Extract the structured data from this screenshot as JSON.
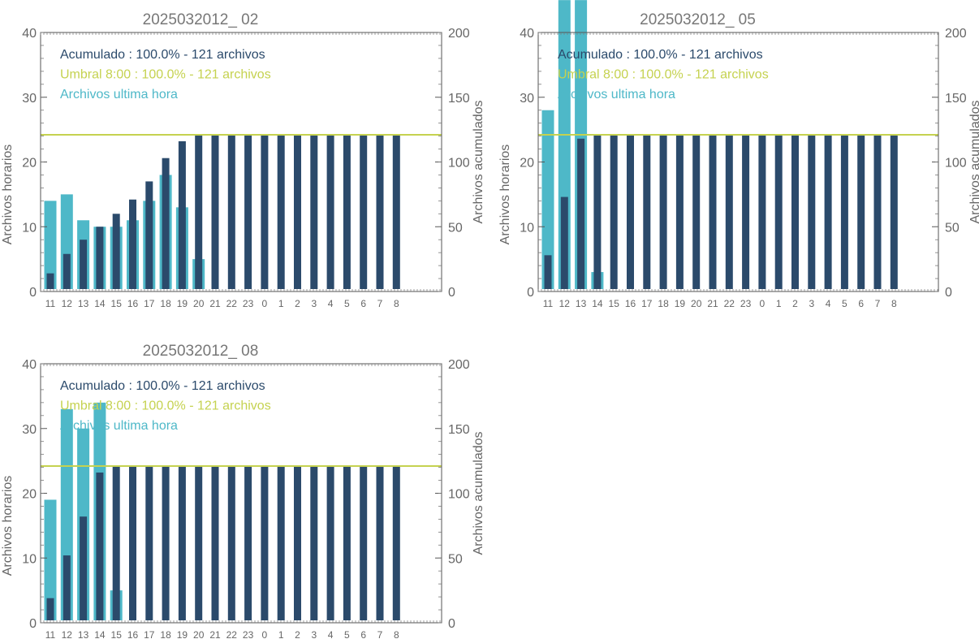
{
  "colors": {
    "hourly": "#4eb8c8",
    "cumulative": "#2b4a6b",
    "threshold": "#c5d250",
    "axis": "#666666",
    "title": "#777777",
    "legend_cumulative": "#2b4a6b",
    "legend_threshold": "#c5d250",
    "legend_hourly": "#4eb8c8"
  },
  "chart_data": [
    {
      "type": "bar",
      "title": "2025032012_ 02",
      "ylabel": "Archivos horarios",
      "y2label": "Archivos acumulados",
      "ylim": [
        0,
        40
      ],
      "y2lim": [
        0,
        200
      ],
      "yticks": [
        "0",
        "10",
        "20",
        "30",
        "40"
      ],
      "y2ticks": [
        "0",
        "50",
        "100",
        "150",
        "200"
      ],
      "categories": [
        "11",
        "12",
        "13",
        "14",
        "15",
        "16",
        "17",
        "18",
        "19",
        "20",
        "21",
        "22",
        "23",
        "0",
        "1",
        "2",
        "3",
        "4",
        "5",
        "6",
        "7",
        "8"
      ],
      "threshold": 121,
      "legend": [
        "Acumulado : 100.0% - 121 archivos",
        "Umbral 8:00 : 100.0% - 121 archivos",
        "Archivos ultima hora"
      ],
      "series": [
        {
          "name": "Archivos ultima hora",
          "axis": "left",
          "values": [
            14,
            15,
            11,
            10,
            10,
            11,
            14,
            18,
            13,
            5,
            null,
            null,
            null,
            null,
            null,
            null,
            null,
            null,
            null,
            null,
            null,
            null
          ]
        },
        {
          "name": "Acumulado",
          "axis": "right",
          "values": [
            14,
            29,
            40,
            50,
            60,
            71,
            85,
            103,
            116,
            121,
            121,
            121,
            121,
            121,
            121,
            121,
            121,
            121,
            121,
            121,
            121,
            121
          ]
        }
      ]
    },
    {
      "type": "bar",
      "title": "2025032012_ 05",
      "ylabel": "Archivos horarios",
      "y2label": "Archivos acumulados",
      "ylim": [
        0,
        40
      ],
      "y2lim": [
        0,
        200
      ],
      "yticks": [
        "0",
        "10",
        "20",
        "30",
        "40"
      ],
      "y2ticks": [
        "0",
        "50",
        "100",
        "150",
        "200"
      ],
      "categories": [
        "11",
        "12",
        "13",
        "14",
        "15",
        "16",
        "17",
        "18",
        "19",
        "20",
        "21",
        "22",
        "23",
        "0",
        "1",
        "2",
        "3",
        "4",
        "5",
        "6",
        "7",
        "8"
      ],
      "threshold": 121,
      "legend": [
        "Acumulado : 100.0% - 121 archivos",
        "Umbral 8:00 : 100.0% - 121 archivos",
        "Archivos ultima hora"
      ],
      "series": [
        {
          "name": "Archivos ultima hora",
          "axis": "left",
          "values": [
            28,
            45,
            45,
            3,
            null,
            null,
            null,
            null,
            null,
            null,
            null,
            null,
            null,
            null,
            null,
            null,
            null,
            null,
            null,
            null,
            null,
            null
          ]
        },
        {
          "name": "Acumulado",
          "axis": "right",
          "values": [
            28,
            73,
            118,
            121,
            121,
            121,
            121,
            121,
            121,
            121,
            121,
            121,
            121,
            121,
            121,
            121,
            121,
            121,
            121,
            121,
            121,
            121
          ]
        }
      ]
    },
    {
      "type": "bar",
      "title": "2025032012_ 08",
      "ylabel": "Archivos horarios",
      "y2label": "Archivos acumulados",
      "ylim": [
        0,
        40
      ],
      "y2lim": [
        0,
        200
      ],
      "yticks": [
        "0",
        "10",
        "20",
        "30",
        "40"
      ],
      "y2ticks": [
        "0",
        "50",
        "100",
        "150",
        "200"
      ],
      "categories": [
        "11",
        "12",
        "13",
        "14",
        "15",
        "16",
        "17",
        "18",
        "19",
        "20",
        "21",
        "22",
        "23",
        "0",
        "1",
        "2",
        "3",
        "4",
        "5",
        "6",
        "7",
        "8"
      ],
      "threshold": 121,
      "legend": [
        "Acumulado : 100.0% - 121 archivos",
        "Umbral 8:00 : 100.0% - 121 archivos",
        "Archivos ultima hora"
      ],
      "series": [
        {
          "name": "Archivos ultima hora",
          "axis": "left",
          "values": [
            19,
            33,
            30,
            34,
            5,
            null,
            null,
            null,
            null,
            null,
            null,
            null,
            null,
            null,
            null,
            null,
            null,
            null,
            null,
            null,
            null,
            null
          ]
        },
        {
          "name": "Acumulado",
          "axis": "right",
          "values": [
            19,
            52,
            82,
            116,
            121,
            121,
            121,
            121,
            121,
            121,
            121,
            121,
            121,
            121,
            121,
            121,
            121,
            121,
            121,
            121,
            121,
            121
          ]
        }
      ]
    }
  ]
}
